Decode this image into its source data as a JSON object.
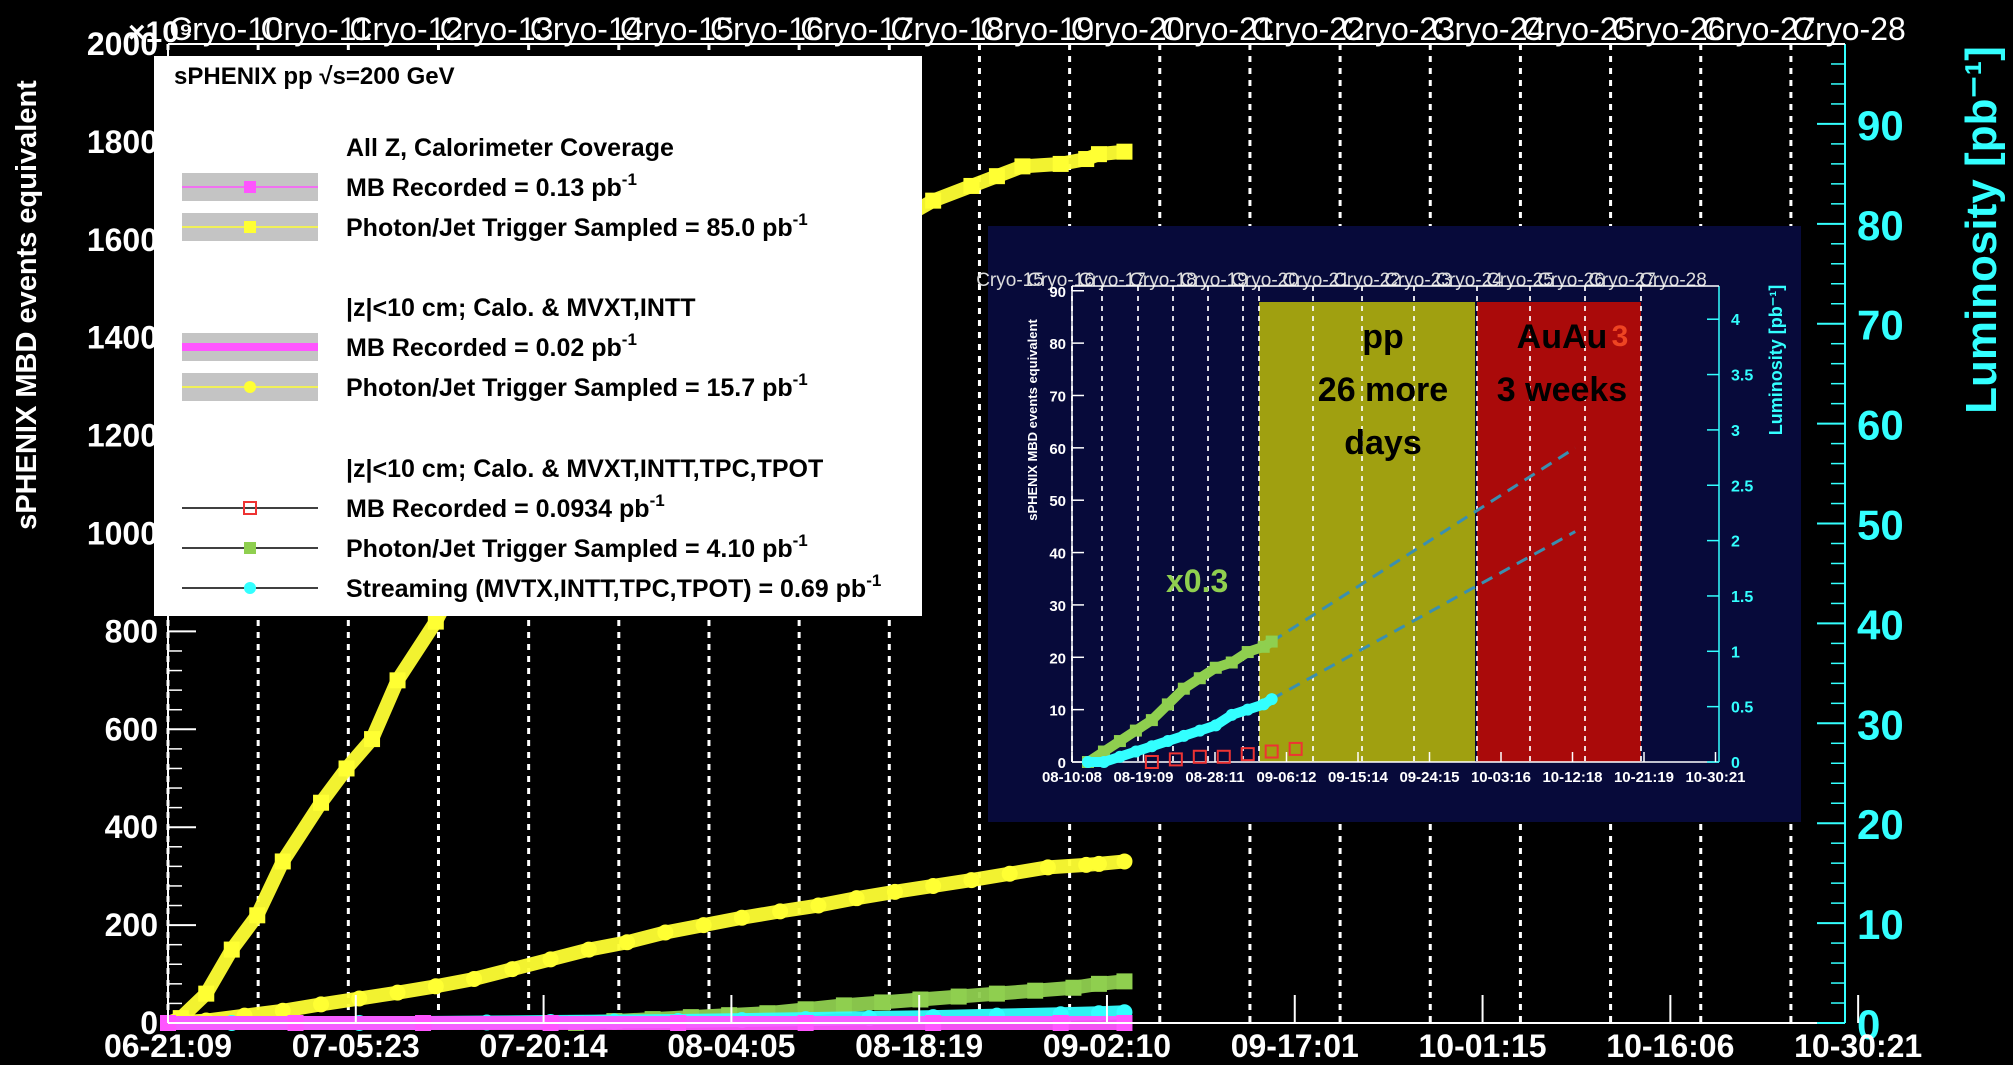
{
  "chart_data": {
    "type": "scatter",
    "title": "",
    "xlabel": "",
    "ylabel": "sPHENIX MBD events equivalent",
    "ylabel_right": "Luminosity [pb⁻¹]",
    "y_exponent": "×10⁹",
    "ylim": [
      0,
      2000
    ],
    "ylim_right": [
      0,
      98
    ],
    "xlim": [
      "06-21:09",
      "10-30:21"
    ],
    "x_ticks": [
      "06-21:09",
      "07-05:23",
      "07-20:14",
      "08-04:05",
      "08-18:19",
      "09-02:10",
      "09-17:01",
      "10-01:15",
      "10-16:06",
      "10-30:21"
    ],
    "y_ticks": [
      "0",
      "200",
      "400",
      "600",
      "800",
      "1000",
      "1200",
      "1400",
      "1600",
      "1800",
      "2000"
    ],
    "y_ticks_right": [
      "0",
      "10",
      "20",
      "30",
      "40",
      "50",
      "60",
      "70",
      "80",
      "90"
    ],
    "cryo_labels": [
      "Cryo-10",
      "Cryo-11",
      "Cryo-12",
      "Cryo-13",
      "Cryo-14",
      "Cryo-15",
      "Cryo-16",
      "Cryo-17",
      "Cryo-18",
      "Cryo-19",
      "Cryo-20",
      "Cryo-21",
      "Cryo-22",
      "Cryo-23",
      "Cryo-24",
      "Cryo-25",
      "Cryo-26",
      "Cryo-27",
      "Cryo-28"
    ],
    "cryo_x_days": [
      0,
      5,
      14,
      23,
      32,
      41,
      50,
      59,
      68,
      77,
      86,
      95,
      104,
      113,
      122,
      131,
      140,
      149,
      158
    ],
    "series": [
      {
        "color": "#ffff33",
        "marker": "square",
        "x_days": [
          0,
          1,
          3,
          5,
          7,
          9,
          12,
          14,
          16,
          18,
          21,
          23,
          25,
          28,
          30,
          32,
          35,
          37,
          40,
          42,
          44,
          47,
          49,
          51,
          53,
          56,
          58,
          60,
          63,
          65,
          67,
          70,
          72,
          73,
          75
        ],
        "y": [
          0,
          10,
          60,
          150,
          220,
          330,
          450,
          520,
          580,
          700,
          820,
          920,
          990,
          1080,
          1150,
          1230,
          1290,
          1340,
          1390,
          1420,
          1460,
          1500,
          1530,
          1560,
          1590,
          1620,
          1650,
          1680,
          1710,
          1730,
          1750,
          1755,
          1765,
          1775,
          1780
        ]
      },
      {
        "color": "#ffff33",
        "marker": "circle",
        "x_days": [
          0,
          3,
          6,
          9,
          12,
          15,
          18,
          21,
          24,
          27,
          30,
          33,
          36,
          39,
          42,
          45,
          48,
          51,
          54,
          57,
          60,
          63,
          66,
          69,
          72,
          73,
          75
        ],
        "y": [
          0,
          5,
          15,
          25,
          38,
          50,
          62,
          75,
          90,
          110,
          130,
          150,
          165,
          185,
          200,
          215,
          228,
          240,
          255,
          268,
          280,
          292,
          305,
          318,
          323,
          325,
          330
        ]
      },
      {
        "color": "#8fcf4f",
        "marker": "square",
        "x_days": [
          32,
          35,
          38,
          41,
          44,
          47,
          50,
          53,
          56,
          59,
          62,
          65,
          68,
          71,
          73,
          75
        ],
        "y": [
          0,
          4,
          8,
          12,
          16,
          20,
          28,
          36,
          42,
          48,
          54,
          60,
          66,
          72,
          80,
          85
        ]
      },
      {
        "color": "#33ffff",
        "marker": "circle",
        "x_days": [
          0,
          5,
          10,
          15,
          20,
          25,
          30,
          35,
          40,
          45,
          50,
          55,
          60,
          65,
          70,
          73,
          75
        ],
        "y": [
          0,
          0,
          0,
          0,
          0,
          1,
          2,
          3,
          4,
          6,
          8,
          10,
          12,
          15,
          18,
          20,
          22
        ]
      },
      {
        "color": "#ff55ff",
        "marker": "square",
        "x_days": [
          0,
          10,
          20,
          30,
          40,
          50,
          60,
          70,
          75
        ],
        "y": [
          0,
          0,
          0,
          0,
          0,
          0,
          0,
          0,
          0
        ]
      }
    ],
    "legend": {
      "header": "sPHENIX pp √s=200 GeV",
      "groups": [
        {
          "title": "All Z, Calorimeter Coverage",
          "entries": [
            {
              "label": "MB Recorded = 0.13 pb",
              "sup": "-1",
              "color": "#ff55ff",
              "marker": "square",
              "band": true
            },
            {
              "label": "Photon/Jet Trigger Sampled = 85.0 pb",
              "sup": "-1",
              "color": "#ffff33",
              "marker": "square",
              "band": true
            }
          ]
        },
        {
          "title": "|z|<10 cm; Calo. & MVXT,INTT",
          "entries": [
            {
              "label": "MB Recorded = 0.02 pb",
              "sup": "-1",
              "color": "#ff55ff",
              "marker": "thickline",
              "band": true
            },
            {
              "label": "Photon/Jet Trigger Sampled = 15.7 pb",
              "sup": "-1",
              "color": "#ffff33",
              "marker": "circle",
              "band": true
            }
          ]
        },
        {
          "title": "|z|<10 cm; Calo. & MVXT,INTT,TPC,TPOT",
          "entries": [
            {
              "label": "MB Recorded = 0.0934 pb",
              "sup": "-1",
              "color": "#ee3333",
              "marker": "opensquare",
              "band": false
            },
            {
              "label": "Photon/Jet Trigger Sampled = 4.10 pb",
              "sup": "-1",
              "color": "#8fcf4f",
              "marker": "square",
              "band": false
            },
            {
              "label": "Streaming (MVTX,INTT,TPC,TPOT) = 0.69 pb",
              "sup": "-1",
              "color": "#33ffff",
              "marker": "circle",
              "band": false
            }
          ]
        }
      ]
    },
    "inset": {
      "ylabel": "sPHENIX MBD events equivalent",
      "ylabel_right": "Luminosity [pb⁻¹]",
      "ylim": [
        0,
        90
      ],
      "ylim_right": [
        0,
        4.3
      ],
      "x_ticks": [
        "08-10:08",
        "08-19:09",
        "08-28:11",
        "09-06:12",
        "09-15:14",
        "09-24:15",
        "10-03:16",
        "10-12:18",
        "10-21:19",
        "10-30:21"
      ],
      "y_ticks": [
        "0",
        "10",
        "20",
        "30",
        "40",
        "50",
        "60",
        "70",
        "80",
        "90"
      ],
      "y_ticks_right": [
        "0",
        "0.5",
        "1",
        "1.5",
        "2",
        "2.5",
        "3",
        "3.5",
        "4"
      ],
      "cryo_labels": [
        "Cryo-15",
        "Cryo-16",
        "Cryo-17",
        "Cryo-18",
        "Cryo-19",
        "Cryo-20",
        "Cryo-21",
        "Cryo-22",
        "Cryo-23",
        "Cryo-24",
        "Cryo-25",
        "Cryo-26",
        "Cryo-27",
        "Cryo-28"
      ],
      "scale_note": "x0.3",
      "pp_region": {
        "label_lines": [
          "pp",
          "26 more",
          "days"
        ],
        "color": "#a0a010",
        "start_day": 28,
        "end_day": 63
      },
      "auau_region": {
        "label_lines": [
          "AuAu",
          "3 weeks"
        ],
        "extra_label": "3",
        "color": "#aa0a0a",
        "start_day": 63,
        "end_day": 89
      },
      "series": [
        {
          "color": "#8fcf4f",
          "marker": "square",
          "x_days": [
            2,
            4,
            6,
            8,
            10,
            12,
            14,
            16,
            18,
            20,
            22,
            24,
            25
          ],
          "y": [
            0,
            2,
            4,
            6,
            8,
            11,
            14,
            16,
            18,
            19,
            21,
            22,
            23
          ]
        },
        {
          "color": "#33ffff",
          "marker": "circle",
          "x_days": [
            2,
            4,
            6,
            8,
            10,
            12,
            14,
            16,
            18,
            20,
            22,
            24,
            25
          ],
          "y": [
            0,
            0,
            1,
            2,
            3,
            4,
            5,
            6,
            7,
            9,
            10,
            11,
            12
          ]
        },
        {
          "color": "#ee3333",
          "marker": "opensquare",
          "x_days": [
            10,
            13,
            16,
            19,
            22,
            25,
            28
          ],
          "y": [
            0,
            0.5,
            1,
            1,
            1.5,
            2,
            2.5
          ]
        }
      ],
      "projections": [
        {
          "from": [
            25,
            23
          ],
          "to": [
            63,
            60
          ]
        },
        {
          "from": [
            25,
            12
          ],
          "to": [
            63,
            44
          ]
        }
      ]
    }
  }
}
